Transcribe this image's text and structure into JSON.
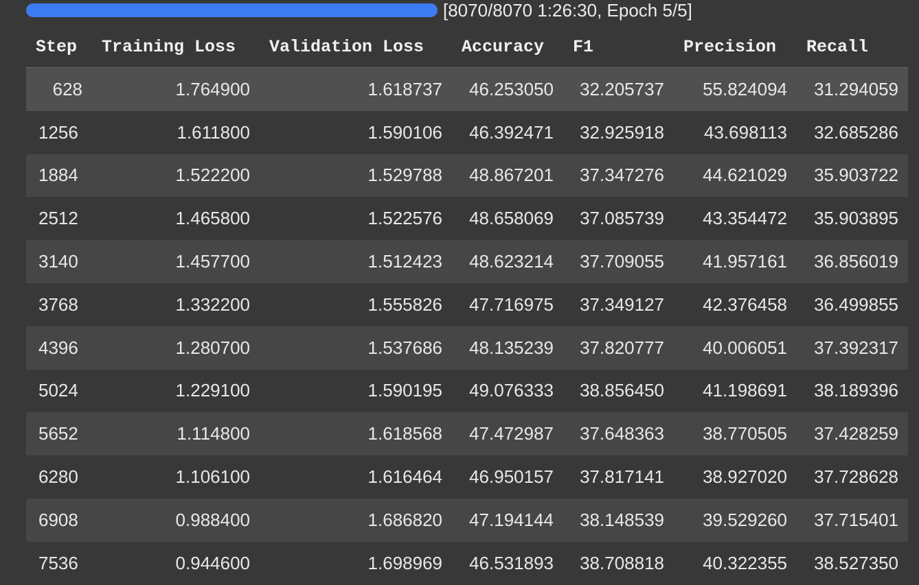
{
  "progress": {
    "label": "[8070/8070 1:26:30, Epoch 5/5]",
    "fraction": 1.0,
    "fill_color": "#3d7bf2"
  },
  "table": {
    "columns": [
      "Step",
      "Training Loss",
      "Validation Loss",
      "Accuracy",
      "F1",
      "Precision",
      "Recall"
    ],
    "rows": [
      [
        "628",
        "1.764900",
        "1.618737",
        "46.253050",
        "32.205737",
        "55.824094",
        "31.294059"
      ],
      [
        "1256",
        "1.611800",
        "1.590106",
        "46.392471",
        "32.925918",
        "43.698113",
        "32.685286"
      ],
      [
        "1884",
        "1.522200",
        "1.529788",
        "48.867201",
        "37.347276",
        "44.621029",
        "35.903722"
      ],
      [
        "2512",
        "1.465800",
        "1.522576",
        "48.658069",
        "37.085739",
        "43.354472",
        "35.903895"
      ],
      [
        "3140",
        "1.457700",
        "1.512423",
        "48.623214",
        "37.709055",
        "41.957161",
        "36.856019"
      ],
      [
        "3768",
        "1.332200",
        "1.555826",
        "47.716975",
        "37.349127",
        "42.376458",
        "36.499855"
      ],
      [
        "4396",
        "1.280700",
        "1.537686",
        "48.135239",
        "37.820777",
        "40.006051",
        "37.392317"
      ],
      [
        "5024",
        "1.229100",
        "1.590195",
        "49.076333",
        "38.856450",
        "41.198691",
        "38.189396"
      ],
      [
        "5652",
        "1.114800",
        "1.618568",
        "47.472987",
        "37.648363",
        "38.770505",
        "37.428259"
      ],
      [
        "6280",
        "1.106100",
        "1.616464",
        "46.950157",
        "37.817141",
        "38.927020",
        "37.728628"
      ],
      [
        "6908",
        "0.988400",
        "1.686820",
        "47.194144",
        "38.148539",
        "39.529260",
        "37.715401"
      ],
      [
        "7536",
        "0.944600",
        "1.698969",
        "46.531893",
        "38.708818",
        "40.322355",
        "38.527350"
      ]
    ]
  }
}
